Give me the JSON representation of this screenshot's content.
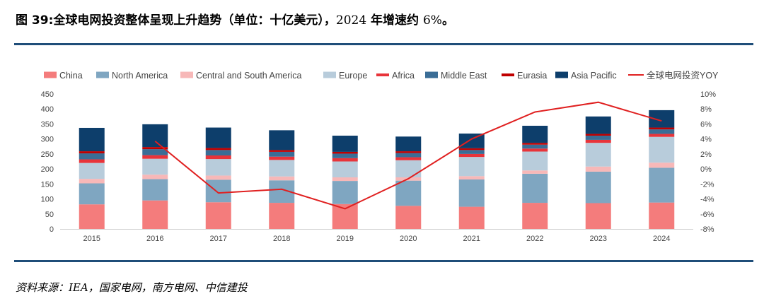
{
  "page": {
    "title_prefix": "图 39:",
    "title_main": "全球电网投资整体呈现上升趋势（单位：十亿美元），",
    "title_num": "2024",
    "title_mid": " 年增速约 ",
    "title_pct": "6%",
    "title_end": "。",
    "source": "资料来源：IEA，国家电网，南方电网、中信建投"
  },
  "chart_data": {
    "type": "bar",
    "stacked": true,
    "categories": [
      "2015",
      "2016",
      "2017",
      "2018",
      "2019",
      "2020",
      "2021",
      "2022",
      "2023",
      "2024"
    ],
    "y_left": {
      "min": 0,
      "max": 450,
      "ticks": [
        0,
        50,
        100,
        150,
        200,
        250,
        300,
        350,
        400,
        450
      ]
    },
    "y_right": {
      "min": -8,
      "max": 10,
      "ticks": [
        -8,
        -6,
        -4,
        -2,
        0,
        2,
        4,
        6,
        8,
        10
      ],
      "tick_labels": [
        "-8%",
        "-6%",
        "-4%",
        "-2%",
        "0%",
        "2%",
        "4%",
        "6%",
        "8%",
        "10%"
      ]
    },
    "grid": false,
    "legend_position": "top",
    "series": [
      {
        "name": "China",
        "color": "#f47c7c",
        "values": [
          82,
          95,
          89,
          87,
          83,
          77,
          74,
          87,
          86,
          88
        ]
      },
      {
        "name": "North America",
        "color": "#7fa6c1",
        "values": [
          70,
          71,
          75,
          75,
          77,
          84,
          91,
          97,
          105,
          116
        ]
      },
      {
        "name": "Central and South America",
        "color": "#f7b8b8",
        "values": [
          15,
          15,
          14,
          13,
          12,
          11,
          11,
          11,
          17,
          17
        ]
      },
      {
        "name": "Europe",
        "color": "#b8ccdb",
        "values": [
          53,
          53,
          55,
          55,
          53,
          57,
          64,
          63,
          79,
          86
        ]
      },
      {
        "name": "Africa",
        "color": "#e8343a",
        "values": [
          12,
          12,
          12,
          11,
          11,
          10,
          10,
          10,
          10,
          10
        ]
      },
      {
        "name": "Middle East",
        "color": "#3a6d96",
        "values": [
          20,
          20,
          18,
          16,
          15,
          14,
          13,
          13,
          14,
          15
        ]
      },
      {
        "name": "Eurasia",
        "color": "#c00000",
        "values": [
          7,
          7,
          7,
          6,
          6,
          6,
          6,
          6,
          6,
          6
        ]
      },
      {
        "name": "Asia Pacific",
        "color": "#0d3e6b",
        "values": [
          78,
          76,
          68,
          66,
          54,
          49,
          49,
          57,
          58,
          58
        ]
      }
    ],
    "line_series": {
      "name": "全球电网投资YOY",
      "color": "#e02020",
      "axis": "right",
      "start_index": 1,
      "values": [
        3.7,
        -3.2,
        -2.7,
        -5.3,
        -1.3,
        4.0,
        7.6,
        8.9,
        6.4
      ]
    }
  }
}
